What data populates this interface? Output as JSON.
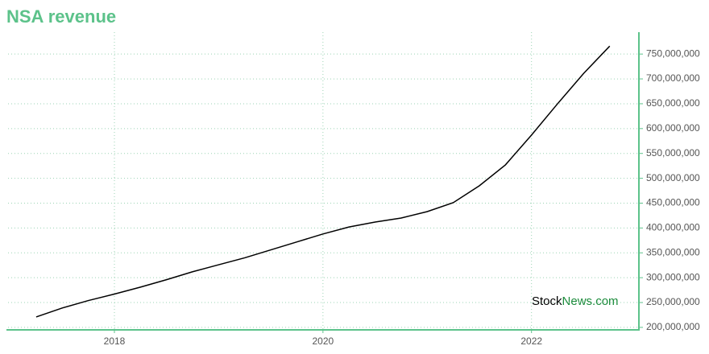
{
  "chart_data": {
    "type": "line",
    "title": "NSA revenue",
    "x": [
      2017.25,
      2017.5,
      2017.75,
      2018.0,
      2018.25,
      2018.5,
      2018.75,
      2019.0,
      2019.25,
      2019.5,
      2019.75,
      2020.0,
      2020.25,
      2020.5,
      2020.75,
      2021.0,
      2021.25,
      2021.5,
      2021.75,
      2022.0,
      2022.25,
      2022.5,
      2022.75
    ],
    "series": [
      {
        "name": "Revenue",
        "color": "#000000",
        "values": [
          221000000,
          239000000,
          254000000,
          267000000,
          281000000,
          296000000,
          312000000,
          326000000,
          340000000,
          356000000,
          372000000,
          388000000,
          402000000,
          412000000,
          420000000,
          433000000,
          451000000,
          485000000,
          527000000,
          587000000,
          650000000,
          711000000,
          766000000
        ]
      }
    ],
    "xlim": [
      2016.98,
      2023.03
    ],
    "xticks": [
      2018,
      2020,
      2022
    ],
    "ylim": [
      195000000,
      794000000
    ],
    "yticks": [
      {
        "value": 200000000,
        "label": "200,000,000"
      },
      {
        "value": 250000000,
        "label": "250,000,000"
      },
      {
        "value": 300000000,
        "label": "300,000,000"
      },
      {
        "value": 350000000,
        "label": "350,000,000"
      },
      {
        "value": 400000000,
        "label": "400,000,000"
      },
      {
        "value": 450000000,
        "label": "450,000,000"
      },
      {
        "value": 500000000,
        "label": "500,000,000"
      },
      {
        "value": 550000000,
        "label": "550,000,000"
      },
      {
        "value": 600000000,
        "label": "600,000,000"
      },
      {
        "value": 650000000,
        "label": "650,000,000"
      },
      {
        "value": 700000000,
        "label": "700,000,000"
      },
      {
        "value": 750000000,
        "label": "750,000,000"
      }
    ],
    "grid": true,
    "axis_color": "#5cc28a",
    "watermark": [
      "Stock",
      "News.com"
    ]
  }
}
